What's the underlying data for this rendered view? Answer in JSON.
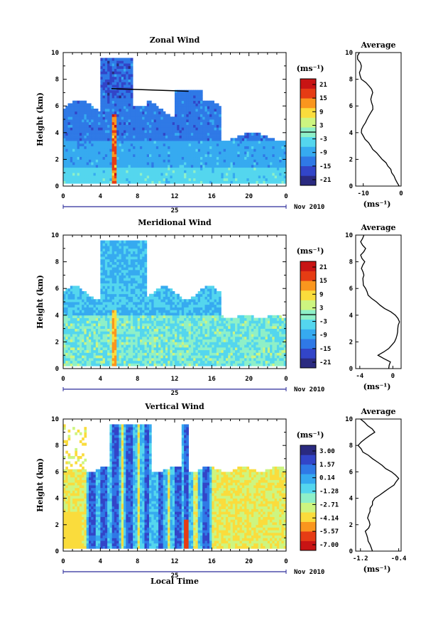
{
  "chart_data": [
    {
      "type": "heatmap",
      "title": "Zonal Wind",
      "ylabel": "Height (km)",
      "xlabel": "",
      "x_ticks": [
        "0",
        "4",
        "8",
        "12",
        "16",
        "20",
        "0"
      ],
      "y_ticks": [
        "0",
        "2",
        "4",
        "6",
        "8",
        "10"
      ],
      "xlim": [
        0,
        24
      ],
      "ylim": [
        0,
        10
      ],
      "date_axis": {
        "day": "25",
        "month_year": "Nov 2010"
      },
      "colorbar": {
        "unit": "(ms⁻¹)",
        "ticks": [
          "-21",
          "-15",
          "-9",
          "-3",
          "3",
          "9",
          "15",
          "21"
        ],
        "colors": [
          "#2a2a80",
          "#3245c8",
          "#2f79e6",
          "#36aaf0",
          "#54d6ee",
          "#8ef0c8",
          "#cdf580",
          "#fadc3c",
          "#fa961e",
          "#e63c14",
          "#c81414"
        ]
      },
      "dominant_colors": [
        "#36aaf0",
        "#54d6ee",
        "#2f79e6",
        "#3245c8"
      ],
      "average": {
        "title": "Average",
        "xlabel": "(ms⁻¹)",
        "x_ticks": [
          "-10",
          "0"
        ],
        "xlim": [
          -12,
          0
        ],
        "y_ticks": [
          "0",
          "2",
          "4",
          "6",
          "8",
          "10"
        ],
        "heights": [
          0,
          0.5,
          1,
          1.5,
          2,
          2.5,
          3,
          3.5,
          4,
          4.5,
          5,
          5.5,
          6,
          6.5,
          7,
          7.5,
          8,
          8.5,
          9,
          9.5,
          10
        ],
        "values": [
          -0.5,
          -1.5,
          -2.5,
          -3.5,
          -5,
          -6.5,
          -8,
          -9.5,
          -10.5,
          -10,
          -9,
          -8,
          -7.5,
          -8,
          -7.5,
          -8.5,
          -10.5,
          -11,
          -10.5,
          -11.5,
          -11
        ]
      }
    },
    {
      "type": "heatmap",
      "title": "Meridional Wind",
      "ylabel": "Height (km)",
      "xlabel": "",
      "x_ticks": [
        "0",
        "4",
        "8",
        "12",
        "16",
        "20",
        "0"
      ],
      "y_ticks": [
        "0",
        "2",
        "4",
        "6",
        "8",
        "10"
      ],
      "xlim": [
        0,
        24
      ],
      "ylim": [
        0,
        10
      ],
      "date_axis": {
        "day": "25",
        "month_year": "Nov 2010"
      },
      "colorbar": {
        "unit": "(ms⁻¹)",
        "ticks": [
          "-21",
          "-15",
          "-9",
          "-3",
          "3",
          "9",
          "15",
          "21"
        ],
        "colors": [
          "#2a2a80",
          "#3245c8",
          "#2f79e6",
          "#36aaf0",
          "#54d6ee",
          "#8ef0c8",
          "#cdf580",
          "#fadc3c",
          "#fa961e",
          "#e63c14",
          "#c81414"
        ]
      },
      "dominant_colors": [
        "#54d6ee",
        "#8ef0c8",
        "#36aaf0",
        "#cdf580"
      ],
      "average": {
        "title": "Average",
        "xlabel": "(ms⁻¹)",
        "x_ticks": [
          "-4",
          "0"
        ],
        "xlim": [
          -4.5,
          1
        ],
        "y_ticks": [
          "0",
          "2",
          "4",
          "6",
          "8",
          "10"
        ],
        "heights": [
          0,
          0.5,
          1,
          1.5,
          2,
          2.5,
          3,
          3.5,
          4,
          4.5,
          5,
          5.5,
          6,
          6.5,
          7,
          7.5,
          8,
          8.5,
          9,
          9.5,
          10
        ],
        "values": [
          -0.5,
          -0.3,
          -1.8,
          -0.5,
          0.2,
          0.5,
          0.6,
          0.8,
          0.3,
          -1,
          -2,
          -3,
          -3.3,
          -3.6,
          -3.5,
          -3.8,
          -3.4,
          -3.9,
          -3.3,
          -3.9,
          -3.5
        ]
      }
    },
    {
      "type": "heatmap",
      "title": "Vertical Wind",
      "ylabel": "Height (km)",
      "xlabel": "Local Time",
      "x_ticks": [
        "0",
        "4",
        "8",
        "12",
        "16",
        "20",
        "0"
      ],
      "y_ticks": [
        "0",
        "2",
        "4",
        "6",
        "8",
        "10"
      ],
      "xlim": [
        0,
        24
      ],
      "ylim": [
        0,
        10
      ],
      "date_axis": {
        "day": "25",
        "month_year": "Nov 2010"
      },
      "colorbar": {
        "unit": "(ms⁻¹)",
        "ticks": [
          "3.00",
          "1.57",
          "0.14",
          "-1.28",
          "-2.71",
          "-4.14",
          "-5.57",
          "-7.00"
        ],
        "colors": [
          "#c81414",
          "#e63c14",
          "#fa961e",
          "#fadc3c",
          "#cdf580",
          "#8ef0c8",
          "#54d6ee",
          "#36aaf0",
          "#2f79e6",
          "#3245c8",
          "#2a2a80"
        ]
      },
      "dominant_colors": [
        "#cdf580",
        "#fadc3c",
        "#2f79e6",
        "#3245c8"
      ],
      "average": {
        "title": "Average",
        "xlabel": "(ms⁻¹)",
        "x_ticks": [
          "-1.2",
          "-0.4"
        ],
        "xlim": [
          -1.3,
          -0.35
        ],
        "y_ticks": [
          "0",
          "2",
          "4",
          "6",
          "8",
          "10"
        ],
        "heights": [
          0,
          0.5,
          1,
          1.5,
          2,
          2.5,
          3,
          3.5,
          4,
          4.5,
          5,
          5.5,
          6,
          6.5,
          7,
          7.5,
          8,
          8.5,
          9,
          9.5,
          10
        ],
        "values": [
          -0.95,
          -1.0,
          -1.05,
          -1.1,
          -1.0,
          -1.05,
          -1.0,
          -0.95,
          -0.9,
          -0.7,
          -0.5,
          -0.4,
          -0.55,
          -0.75,
          -0.95,
          -1.15,
          -1.25,
          -1.1,
          -0.9,
          -1.05,
          -1.2
        ]
      }
    }
  ]
}
